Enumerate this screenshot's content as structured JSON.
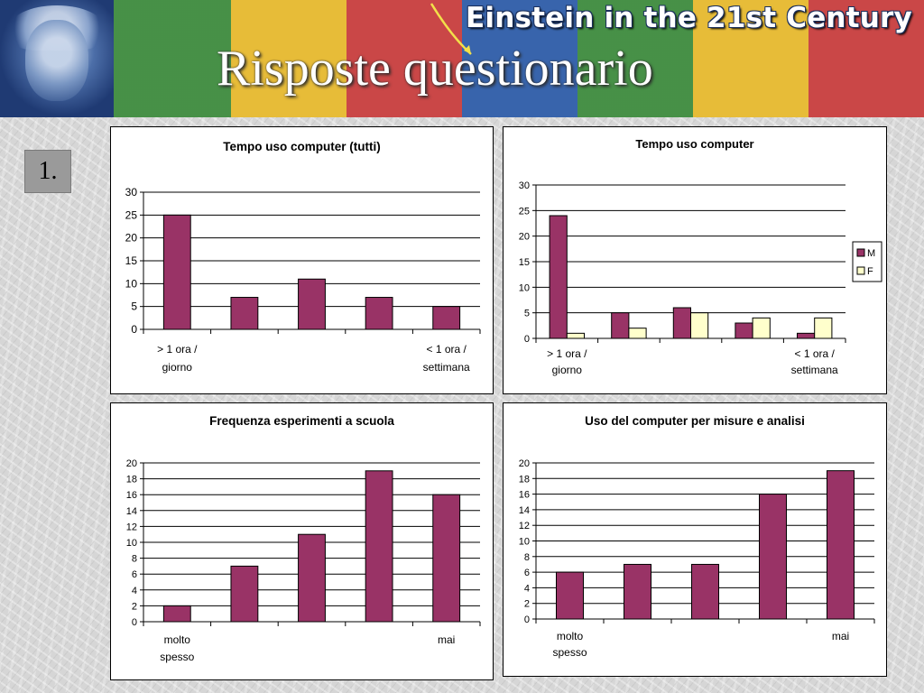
{
  "header": {
    "banner_title": "Einstein in the 21st Century",
    "slide_title": "Risposte questionario",
    "strip_colors": [
      "#3a8a3a",
      "#e8b92a",
      "#c83a3a",
      "#2a5aa8",
      "#3a8a3a",
      "#e8b92a",
      "#c83a3a"
    ]
  },
  "slide": {
    "number_label": "1."
  },
  "colors": {
    "bar_m": "#993366",
    "bar_f": "#ffffcc"
  },
  "chart_data": [
    {
      "type": "bar",
      "title": "Tempo uso computer (tutti)",
      "categories": [
        "> 1 ora / giorno",
        "",
        "",
        "",
        "< 1 ora / settimana"
      ],
      "category_lines": [
        [
          "> 1 ora /",
          "giorno"
        ],
        [],
        [],
        [],
        [
          "< 1 ora /",
          "settimana"
        ]
      ],
      "values": [
        25,
        7,
        11,
        7,
        5
      ],
      "ylim": [
        0,
        30
      ],
      "yticks": [
        0,
        5,
        10,
        15,
        20,
        25,
        30
      ],
      "grid": true,
      "legend": "none"
    },
    {
      "type": "bar",
      "title": "Tempo uso computer",
      "categories": [
        "> 1 ora / giorno",
        "",
        "",
        "",
        "< 1 ora / settimana"
      ],
      "category_lines": [
        [
          "> 1 ora /",
          "giorno"
        ],
        [],
        [],
        [],
        [
          "< 1 ora /",
          "settimana"
        ]
      ],
      "series": [
        {
          "name": "M",
          "values": [
            24,
            5,
            6,
            3,
            1
          ]
        },
        {
          "name": "F",
          "values": [
            1,
            2,
            5,
            4,
            4
          ]
        }
      ],
      "ylim": [
        0,
        30
      ],
      "yticks": [
        0,
        5,
        10,
        15,
        20,
        25,
        30
      ],
      "grid": true,
      "legend": "right"
    },
    {
      "type": "bar",
      "title": "Frequenza esperimenti a scuola",
      "categories": [
        "molto spesso",
        "",
        "",
        "",
        "mai"
      ],
      "category_lines": [
        [
          "molto",
          "spesso"
        ],
        [],
        [],
        [],
        [
          "mai"
        ]
      ],
      "values": [
        2,
        7,
        11,
        19,
        16
      ],
      "ylim": [
        0,
        20
      ],
      "yticks": [
        0,
        2,
        4,
        6,
        8,
        10,
        12,
        14,
        16,
        18,
        20
      ],
      "grid": true,
      "legend": "none"
    },
    {
      "type": "bar",
      "title": "Uso del computer per misure e analisi",
      "categories": [
        "molto spesso",
        "",
        "",
        "",
        "mai"
      ],
      "category_lines": [
        [
          "molto",
          "spesso"
        ],
        [],
        [],
        [],
        [
          "mai"
        ]
      ],
      "values": [
        6,
        7,
        7,
        16,
        19
      ],
      "ylim": [
        0,
        20
      ],
      "yticks": [
        0,
        2,
        4,
        6,
        8,
        10,
        12,
        14,
        16,
        18,
        20
      ],
      "grid": true,
      "legend": "none"
    }
  ]
}
